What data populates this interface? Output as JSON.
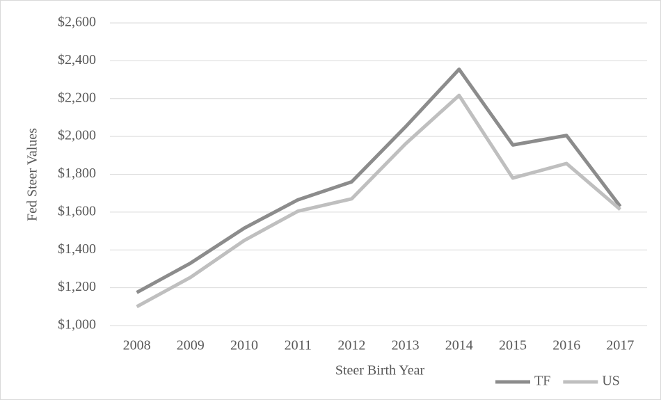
{
  "chart_data": {
    "type": "line",
    "x_label": "Steer Birth Year",
    "y_label": "Fed Steer Values",
    "categories": [
      "2008",
      "2009",
      "2010",
      "2011",
      "2012",
      "2013",
      "2014",
      "2015",
      "2016",
      "2017"
    ],
    "series": [
      {
        "name": "TF",
        "color": "#8c8c8c",
        "values": [
          1175,
          1330,
          1515,
          1665,
          1760,
          2050,
          2355,
          1955,
          2005,
          1630
        ]
      },
      {
        "name": "US",
        "color": "#bfbfbf",
        "values": [
          1100,
          1255,
          1450,
          1605,
          1670,
          1960,
          2217,
          1780,
          1857,
          1614
        ]
      }
    ],
    "ylim": [
      1000,
      2600
    ],
    "yticks": [
      {
        "value": 1000,
        "label": "$1,000"
      },
      {
        "value": 1200,
        "label": "$1,200"
      },
      {
        "value": 1400,
        "label": "$1,400"
      },
      {
        "value": 1600,
        "label": "$1,600"
      },
      {
        "value": 1800,
        "label": "$1,800"
      },
      {
        "value": 2000,
        "label": "$2,000"
      },
      {
        "value": 2200,
        "label": "$2,200"
      },
      {
        "value": 2400,
        "label": "$2,400"
      },
      {
        "value": 2600,
        "label": "$2,600"
      }
    ],
    "grid": true,
    "legend": "bottom-right"
  }
}
